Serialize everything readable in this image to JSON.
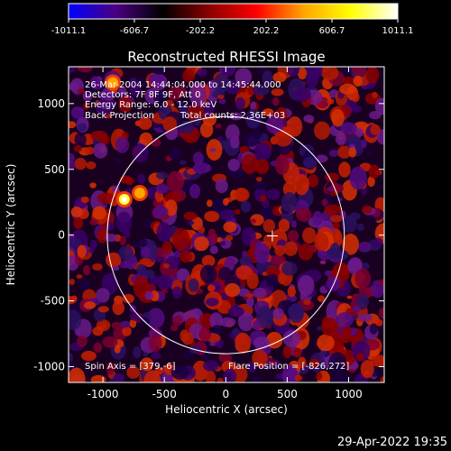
{
  "chart_data": {
    "type": "heatmap",
    "title": "Reconstructed RHESSI Image",
    "xlabel": "Heliocentric X (arcsec)",
    "ylabel": "Heliocentric Y (arcsec)",
    "xlim": [
      -1280,
      1290
    ],
    "ylim": [
      -1120,
      1280
    ],
    "xticks": [
      -1000,
      -500,
      0,
      500,
      1000
    ],
    "xtick_labels": [
      "-1000",
      "-500",
      "0",
      "500",
      "1000"
    ],
    "yticks": [
      -1000,
      -500,
      0,
      500,
      1000
    ],
    "ytick_labels": [
      "-1000",
      "-500",
      "0",
      "500",
      "1000"
    ],
    "colorbar": {
      "ticks": [
        -1011.1,
        -606.7,
        -202.2,
        202.2,
        606.7,
        1011.1
      ],
      "tick_labels": [
        "-1011.1",
        "-606.7",
        "-202.2",
        "202.2",
        "606.7",
        "1011.1"
      ],
      "range": [
        -1011.1,
        1011.1
      ],
      "colormap": [
        "#0000ff",
        "#4b0082",
        "#000000",
        "#8b0000",
        "#ff0000",
        "#ffa500",
        "#ffff00",
        "#ffffff"
      ]
    },
    "solar_limb_radius": 965,
    "solar_center": [
      0,
      0
    ],
    "cross_position": [
      379,
      -6
    ],
    "bright_sources": [
      {
        "x": -826,
        "y": 272,
        "value": 1011.1
      },
      {
        "x": -700,
        "y": 320,
        "value": 700
      },
      {
        "x": -920,
        "y": 1160,
        "value": 400
      }
    ],
    "annotations": {
      "time_range": "26-Mar-2004 14:44:04.000 to 14:45:44.000",
      "detectors": "Detectors: 7F 8F 9F, Att 0",
      "energy_range": "Energy Range: 6.0 - 12.0 keV",
      "method": "Back Projection",
      "total_counts": "Total counts: 2.36E+03",
      "spin_axis": "Spin Axis = [379,-6]",
      "flare_position": "Flare Position = [-826,272]"
    },
    "timestamp": "29-Apr-2022 19:35",
    "colors": {
      "background": "#000000",
      "axes": "#ffffff",
      "limb": "#ffffff"
    }
  }
}
